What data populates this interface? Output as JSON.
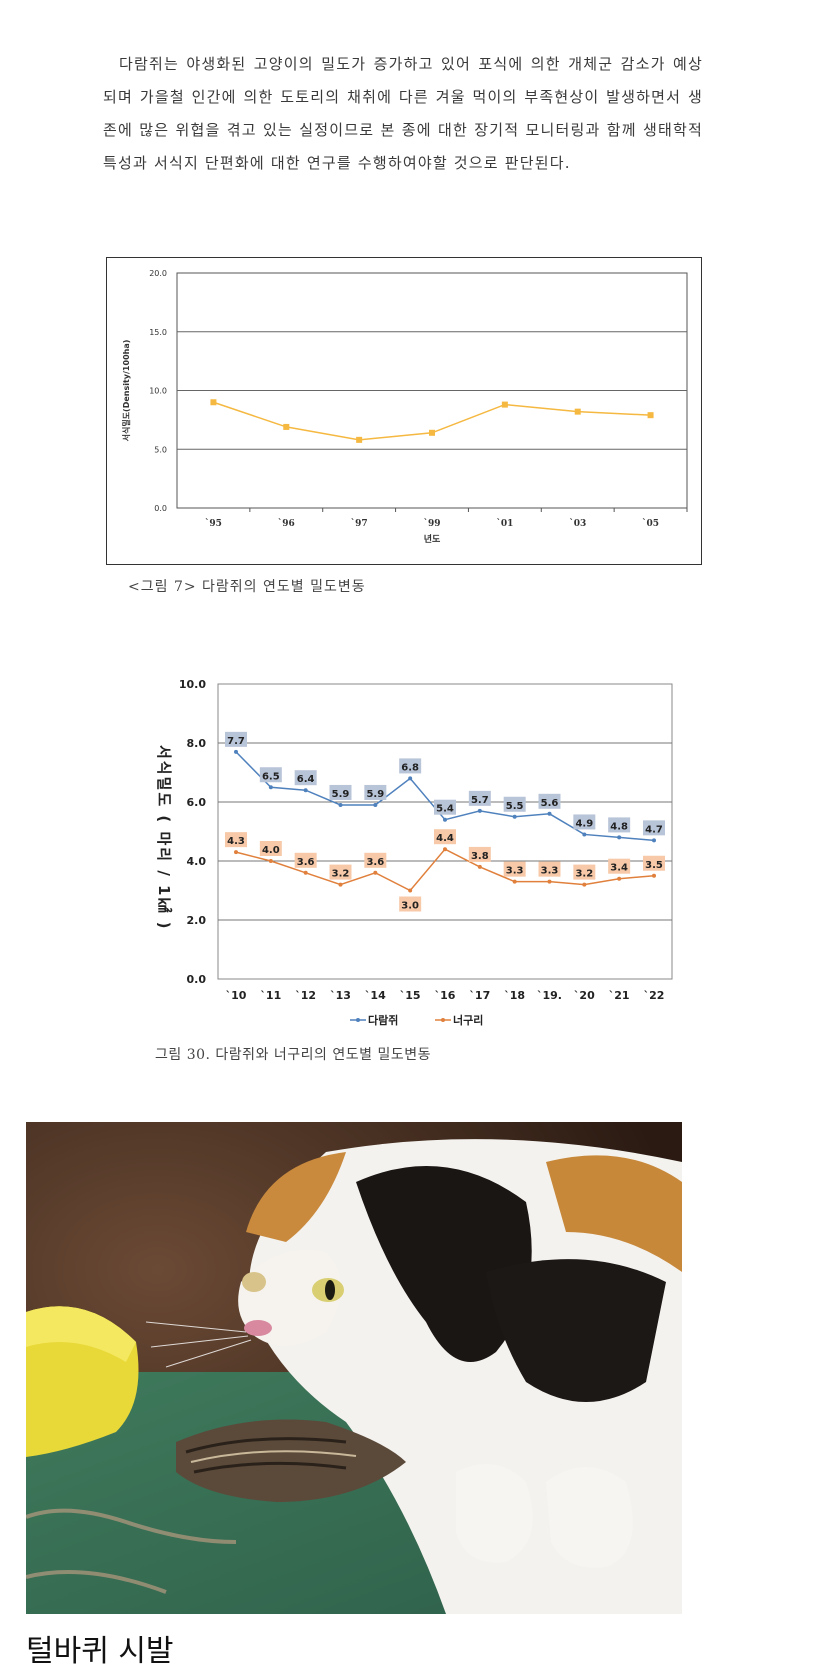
{
  "paragraph": "다람쥐는 야생화된 고양이의 밀도가 증가하고 있어 포식에 의한 개체군 감소가 예상되며 가을철 인간에 의한 도토리의 채취에 다른 겨울 먹이의 부족현상이 발생하면서 생존에 많은 위협을 겪고 있는 실정이므로 본 종에 대한 장기적 모니터링과 함께 생태학적 특성과 서식지 단편화에 대한 연구를 수행하여야할 것으로 판단된다.",
  "caption1": "<그림 7> 다람쥐의 연도별 밀도변동",
  "caption2": "그림 30. 다람쥐와 너구리의 연도별 밀도변동",
  "bottom_text": "털바퀴 시발",
  "chart_data": [
    {
      "type": "line",
      "categories": [
        "`95",
        "`96",
        "`97",
        "`99",
        "`01",
        "`03",
        "`05"
      ],
      "series": [
        {
          "values": [
            9.0,
            6.9,
            5.8,
            6.4,
            8.8,
            8.2,
            7.9
          ],
          "color": "#f5b840"
        }
      ],
      "xlabel": "년도",
      "ylabel": "서식밀도(Density/100ha)",
      "yticks": [
        "0.0",
        "5.0",
        "10.0",
        "15.0",
        "20.0"
      ],
      "ylim": [
        0,
        20
      ],
      "grid": true
    },
    {
      "type": "line",
      "categories": [
        "`10",
        "`11",
        "`12",
        "`13",
        "`14",
        "`15",
        "`16",
        "`17",
        "`18",
        "`19.",
        "`20",
        "`21",
        "`22"
      ],
      "series": [
        {
          "name": "다람쥐",
          "values": [
            7.7,
            6.5,
            6.4,
            5.9,
            5.9,
            6.8,
            5.4,
            5.7,
            5.5,
            5.6,
            4.9,
            4.8,
            4.7
          ],
          "color": "#4f81bd",
          "label_bg": "#b8c4d8"
        },
        {
          "name": "너구리",
          "values": [
            4.3,
            4.0,
            3.6,
            3.2,
            3.6,
            3.0,
            4.4,
            3.8,
            3.3,
            3.3,
            3.2,
            3.4,
            3.5
          ],
          "color": "#e0803c",
          "label_bg": "#f7c9a8"
        }
      ],
      "ylabel": "서식밀도 ( 마리 / 1㎢ )",
      "yticks": [
        "0.0",
        "2.0",
        "4.0",
        "6.0",
        "8.0",
        "10.0"
      ],
      "ylim": [
        0,
        10
      ],
      "grid": true,
      "legend": "bottom"
    }
  ]
}
